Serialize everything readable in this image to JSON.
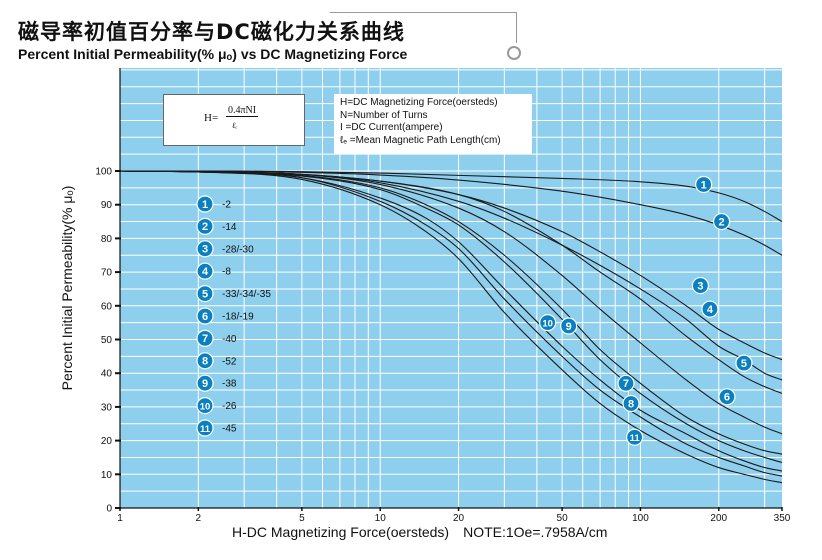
{
  "title_cn": "磁导率初值百分率与DC磁化力关系曲线",
  "title_en": "Percent Initial Permeability(% μₒ) vs DC Magnetizing Force",
  "formula": {
    "lhs": "H=",
    "numerator": "0.4πNI",
    "denominator": "ℓₑ"
  },
  "definitions": [
    "H=DC Magnetizing Force(oersteds)",
    "N=Number of Turns",
    "I  =DC Current(ampere)",
    "ℓₑ =Mean Magnetic Path Length(cm)"
  ],
  "colors": {
    "plot_background": "#8fcfee",
    "badge": "#0a80c0",
    "curve": "#1a1a1a"
  },
  "chart_data": {
    "type": "line",
    "xlabel": "H-DC Magnetizing Force(oersteds)",
    "x_note": "NOTE:1Oe=.7958A/cm",
    "ylabel": "Percent Initial Permeability(% μₒ)",
    "x_scale": "log",
    "xlim": [
      1,
      350
    ],
    "ylim": [
      0,
      100
    ],
    "x_ticks": [
      1,
      2,
      5,
      10,
      20,
      50,
      100,
      200,
      350
    ],
    "x_tick_labels": [
      "1",
      "2",
      "5",
      "10",
      "20",
      "50",
      "100",
      "200",
      "350"
    ],
    "y_ticks": [
      0,
      10,
      20,
      30,
      40,
      50,
      60,
      70,
      80,
      90,
      100
    ],
    "y_tick_labels": [
      "0",
      "10",
      "20",
      "30",
      "40",
      "50",
      "60",
      "70",
      "80",
      "90",
      "100"
    ],
    "grid": true,
    "legend_placement": "left",
    "series": [
      {
        "id": "1",
        "name": "-2",
        "label_at": [
          175,
          96
        ],
        "x": [
          1,
          2,
          5,
          10,
          20,
          50,
          100,
          150,
          200,
          250,
          300,
          350
        ],
        "y": [
          100,
          100,
          99.8,
          99.4,
          98.7,
          97.8,
          96.8,
          95.5,
          93.5,
          91,
          88,
          85
        ]
      },
      {
        "id": "2",
        "name": "-14",
        "label_at": [
          205,
          85
        ],
        "x": [
          1,
          2,
          5,
          10,
          20,
          50,
          100,
          150,
          200,
          250,
          300,
          350
        ],
        "y": [
          100,
          100,
          99.6,
          98.8,
          97.3,
          94,
          90,
          87,
          84,
          81,
          78,
          75
        ]
      },
      {
        "id": "3",
        "name": "-28/-30",
        "label_at": [
          170,
          66
        ],
        "x": [
          1,
          2,
          5,
          10,
          20,
          30,
          50,
          70,
          100,
          150,
          200,
          250,
          300,
          350
        ],
        "y": [
          100,
          99.8,
          99,
          97,
          93,
          89,
          82,
          76,
          69,
          60,
          53,
          49,
          46,
          44
        ]
      },
      {
        "id": "4",
        "name": "-8",
        "label_at": [
          185,
          59
        ],
        "x": [
          1,
          2,
          5,
          10,
          20,
          30,
          50,
          70,
          100,
          150,
          200,
          250,
          300,
          350
        ],
        "y": [
          100,
          99.8,
          99,
          96.5,
          91,
          86,
          78,
          72,
          65,
          56,
          48,
          44,
          40,
          38
        ]
      },
      {
        "id": "5",
        "name": "-33/-34/-35",
        "label_at": [
          250,
          43
        ],
        "x": [
          1,
          2,
          5,
          10,
          20,
          30,
          50,
          70,
          100,
          150,
          200,
          250,
          300,
          350
        ],
        "y": [
          100,
          99.8,
          99,
          97,
          93,
          88,
          78,
          70,
          62,
          51,
          44,
          39,
          36,
          34
        ]
      },
      {
        "id": "6",
        "name": "-18/-19",
        "label_at": [
          215,
          33
        ],
        "x": [
          1,
          2,
          5,
          10,
          20,
          30,
          50,
          70,
          100,
          150,
          200,
          250,
          300,
          350
        ],
        "y": [
          100,
          99.8,
          99,
          96,
          89,
          82,
          69,
          59,
          49,
          38,
          31,
          27,
          24,
          22
        ]
      },
      {
        "id": "7",
        "name": "-40",
        "label_at": [
          88,
          37
        ],
        "x": [
          1,
          2,
          5,
          10,
          15,
          20,
          30,
          50,
          70,
          100,
          150,
          200,
          250,
          300,
          350
        ],
        "y": [
          100,
          99.8,
          98.7,
          95,
          90,
          85,
          75,
          59,
          47,
          37,
          27,
          22,
          19,
          17,
          16
        ]
      },
      {
        "id": "8",
        "name": "-52",
        "label_at": [
          92,
          31
        ],
        "x": [
          1,
          2,
          5,
          10,
          15,
          20,
          30,
          50,
          70,
          100,
          150,
          200,
          250,
          300,
          350
        ],
        "y": [
          100,
          99.8,
          98.5,
          94.5,
          89,
          84,
          73,
          56,
          44,
          34,
          25,
          20,
          17,
          15,
          13.5
        ]
      },
      {
        "id": "9",
        "name": "-38",
        "label_at": [
          53,
          54
        ],
        "x": [
          1,
          2,
          5,
          10,
          15,
          20,
          30,
          50,
          70,
          100,
          150,
          200,
          250,
          300,
          350
        ],
        "y": [
          100,
          99.7,
          98,
          92,
          86,
          79,
          65,
          48,
          38,
          29,
          22,
          17,
          14,
          12,
          11
        ]
      },
      {
        "id": "10",
        "name": "-26",
        "label_at": [
          44,
          55
        ],
        "x": [
          1,
          2,
          5,
          10,
          15,
          20,
          30,
          50,
          70,
          100,
          150,
          200,
          250,
          300,
          350
        ],
        "y": [
          100,
          99.7,
          98,
          91,
          84,
          77,
          62,
          45,
          35,
          27,
          19,
          15,
          12.5,
          10.5,
          9.5
        ]
      },
      {
        "id": "11",
        "name": "-45",
        "label_at": [
          95,
          21
        ],
        "x": [
          1,
          2,
          5,
          10,
          15,
          20,
          30,
          50,
          70,
          100,
          150,
          200,
          250,
          300,
          350
        ],
        "y": [
          100,
          99.7,
          97.5,
          90,
          82,
          74,
          58,
          41,
          31,
          23,
          16,
          12,
          10,
          8.5,
          7.5
        ]
      }
    ]
  }
}
